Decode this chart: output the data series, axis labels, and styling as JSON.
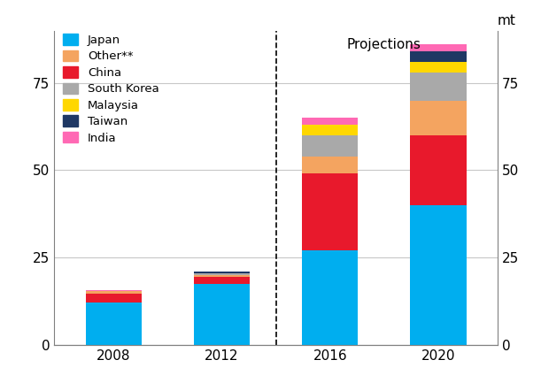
{
  "categories": [
    "2008",
    "2012",
    "2016",
    "2020"
  ],
  "series": {
    "Japan": [
      12.0,
      17.5,
      27.0,
      40.0
    ],
    "China": [
      2.5,
      2.0,
      22.0,
      20.0
    ],
    "Other**": [
      0.8,
      0.5,
      5.0,
      10.0
    ],
    "South Korea": [
      0.0,
      0.5,
      6.0,
      8.0
    ],
    "Malaysia": [
      0.0,
      0.0,
      3.0,
      3.0
    ],
    "Taiwan": [
      0.0,
      0.5,
      0.0,
      3.0
    ],
    "India": [
      0.3,
      0.0,
      2.0,
      2.0
    ]
  },
  "colors": {
    "Japan": "#00AEEF",
    "China": "#E8192C",
    "Other**": "#F4A460",
    "South Korea": "#A9A9A9",
    "Malaysia": "#FFD700",
    "Taiwan": "#1F3864",
    "India": "#FF69B4"
  },
  "order": [
    "Japan",
    "China",
    "Other**",
    "South Korea",
    "Malaysia",
    "Taiwan",
    "India"
  ],
  "legend_order": [
    "Japan",
    "Other**",
    "China",
    "South Korea",
    "Malaysia",
    "Taiwan",
    "India"
  ],
  "ylim": [
    0,
    90
  ],
  "yticks": [
    0,
    25,
    50,
    75
  ],
  "ylabel_left": "mt",
  "ylabel_right": "mt",
  "projections_label": "Projections",
  "background_color": "#FFFFFF",
  "grid_color": "#C8C8C8",
  "spine_color": "#808080"
}
